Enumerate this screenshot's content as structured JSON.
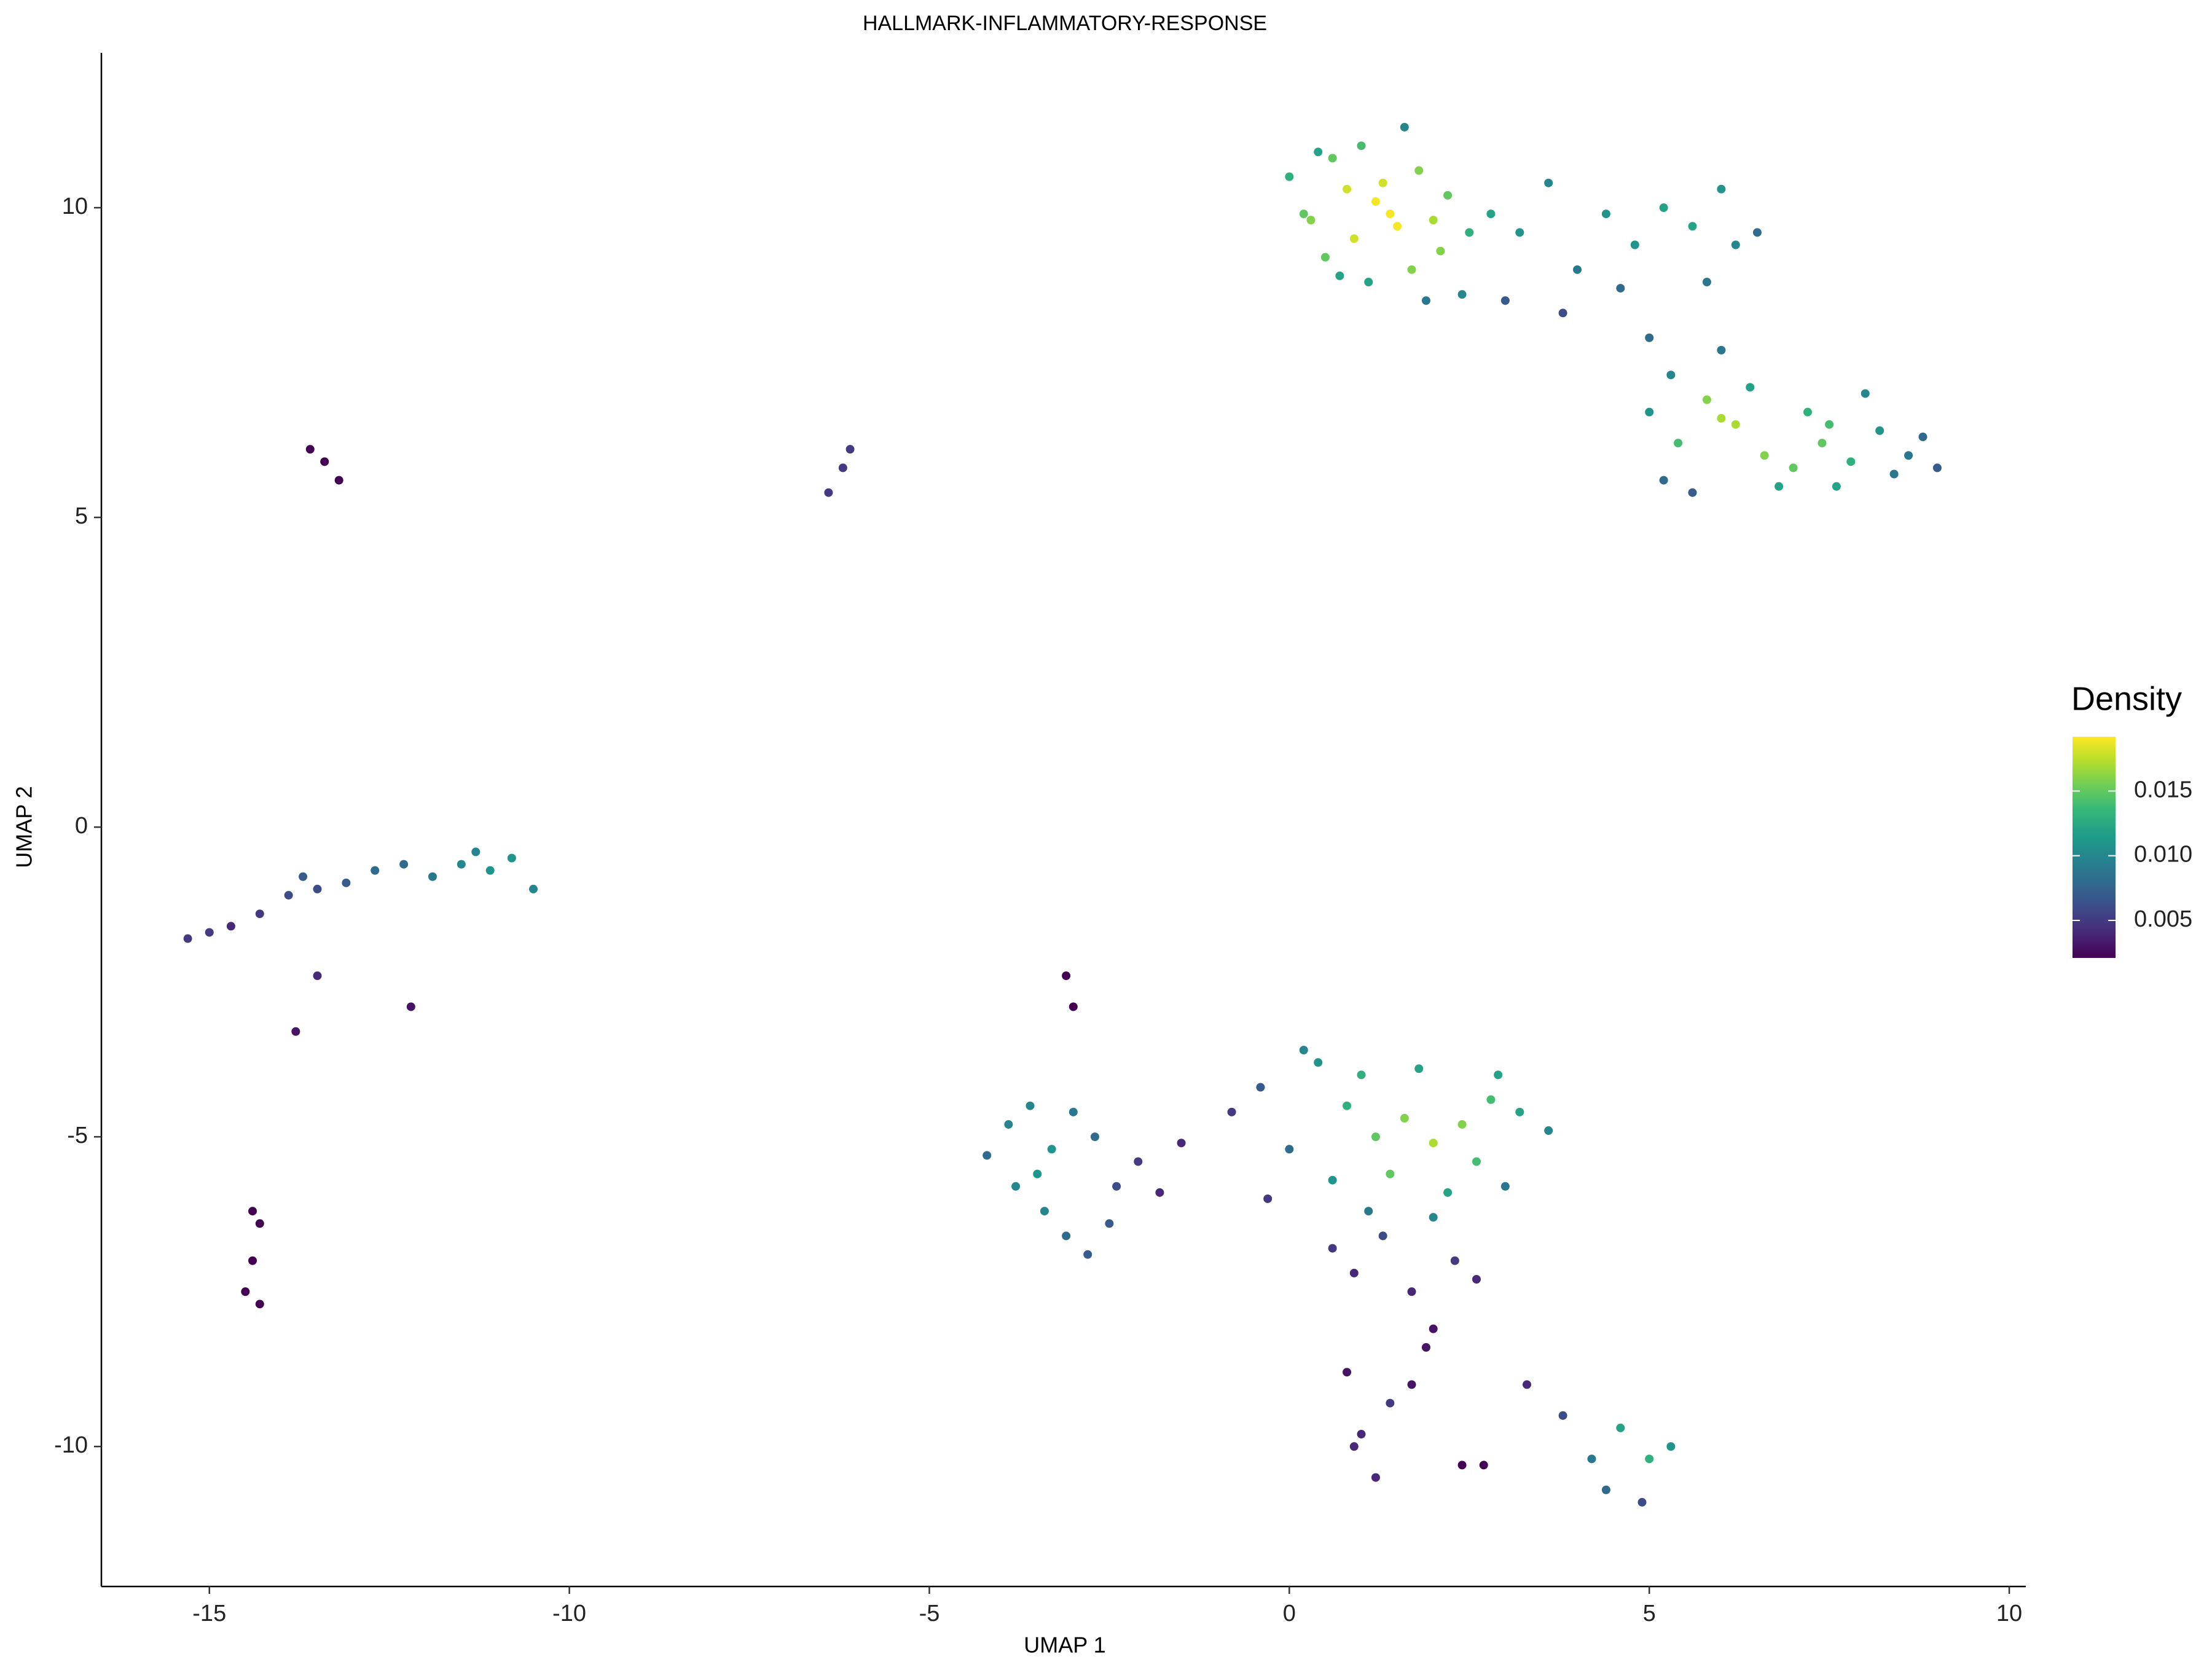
{
  "chart_data": {
    "type": "scatter",
    "title": "HALLMARK-INFLAMMATORY-RESPONSE",
    "x_label": "UMAP 1",
    "y_label": "UMAP 2",
    "xlim": [
      -16.5,
      10.23
    ],
    "ylim": [
      -12.26,
      12.5
    ],
    "xticks": [
      -15,
      -10,
      -5,
      0,
      5,
      10
    ],
    "yticks": [
      -10,
      -5,
      0,
      5,
      10
    ],
    "grid": false,
    "colormap": "viridis",
    "legend": {
      "title": "Density",
      "position": "right",
      "clim": [
        0.0021,
        0.0192
      ],
      "ticks": [
        0.005,
        {
          "value": 0.01,
          "label": "0.010"
        },
        {
          "value": 0.015,
          "label": "0.015"
        }
      ]
    },
    "x": [
      0.0,
      0.3,
      0.6,
      0.9,
      1.2,
      1.5,
      1.8,
      2.1,
      0.2,
      0.5,
      0.8,
      1.1,
      1.4,
      1.7,
      2.0,
      2.4,
      0.4,
      1.0,
      1.3,
      1.6,
      2.2,
      2.5,
      0.7,
      1.9,
      2.8,
      3.2,
      3.6,
      4.0,
      4.4,
      4.8,
      5.2,
      5.6,
      6.0,
      6.2,
      3.0,
      3.8,
      4.6,
      5.0,
      5.8,
      6.5,
      5.0,
      5.4,
      5.8,
      6.2,
      6.6,
      7.0,
      7.4,
      7.8,
      8.2,
      8.6,
      9.0,
      5.2,
      5.6,
      6.0,
      6.4,
      6.8,
      7.2,
      7.6,
      8.0,
      8.4,
      5.3,
      6.0,
      7.5,
      8.8,
      -15.3,
      -15.0,
      -14.7,
      -14.3,
      -13.9,
      -13.5,
      -13.1,
      -12.7,
      -12.3,
      -11.9,
      -11.5,
      -11.1,
      -10.8,
      -10.5,
      -13.7,
      -11.3,
      -13.6,
      -13.4,
      -13.2,
      -6.4,
      -6.2,
      -6.1,
      -14.4,
      -14.3,
      -14.5,
      -14.3,
      -14.4,
      -13.5,
      -13.8,
      -12.2,
      -3.1,
      -3.0,
      -4.2,
      -3.9,
      -3.6,
      -3.3,
      -3.0,
      -2.7,
      -2.4,
      -2.1,
      -3.8,
      -3.4,
      -3.1,
      -2.8,
      -2.5,
      -1.8,
      -1.5,
      -3.5,
      -0.8,
      -0.4,
      0.0,
      0.4,
      0.8,
      1.2,
      1.6,
      2.0,
      2.4,
      2.8,
      3.2,
      3.6,
      0.6,
      1.0,
      1.4,
      1.8,
      2.2,
      2.6,
      3.0,
      0.2,
      1.1,
      2.0,
      2.9,
      -0.3,
      0.6,
      0.9,
      1.3,
      1.7,
      2.0,
      2.3,
      2.6,
      1.9,
      0.8,
      1.0,
      1.2,
      1.4,
      1.7,
      0.9,
      2.4,
      2.7,
      3.3,
      3.8,
      4.2,
      4.6,
      5.0,
      5.3,
      4.4,
      4.9
    ],
    "y": [
      10.5,
      9.8,
      10.8,
      9.5,
      10.1,
      9.7,
      10.6,
      9.3,
      9.9,
      9.2,
      10.3,
      8.8,
      9.9,
      9.0,
      9.8,
      8.6,
      10.9,
      11.0,
      10.4,
      11.3,
      10.2,
      9.6,
      8.9,
      8.5,
      9.9,
      9.6,
      10.4,
      9.0,
      9.9,
      9.4,
      10.0,
      9.7,
      10.3,
      9.4,
      8.5,
      8.3,
      8.7,
      7.9,
      8.8,
      9.6,
      6.7,
      6.2,
      6.9,
      6.5,
      6.0,
      5.8,
      6.2,
      5.9,
      6.4,
      6.0,
      5.8,
      5.6,
      5.4,
      6.6,
      7.1,
      5.5,
      6.7,
      5.5,
      7.0,
      5.7,
      7.3,
      7.7,
      6.5,
      6.3,
      -1.8,
      -1.7,
      -1.6,
      -1.4,
      -1.1,
      -1.0,
      -0.9,
      -0.7,
      -0.6,
      -0.8,
      -0.6,
      -0.7,
      -0.5,
      -1.0,
      -0.8,
      -0.4,
      6.1,
      5.9,
      5.6,
      5.4,
      5.8,
      6.1,
      -6.2,
      -6.4,
      -7.5,
      -7.7,
      -7.0,
      -2.4,
      -3.3,
      -2.9,
      -2.4,
      -2.9,
      -5.3,
      -4.8,
      -4.5,
      -5.2,
      -4.6,
      -5.0,
      -5.8,
      -5.4,
      -5.8,
      -6.2,
      -6.6,
      -6.9,
      -6.4,
      -5.9,
      -5.1,
      -5.6,
      -4.6,
      -4.2,
      -5.2,
      -3.8,
      -4.5,
      -5.0,
      -4.7,
      -5.1,
      -4.8,
      -4.4,
      -4.6,
      -4.9,
      -5.7,
      -4.0,
      -5.6,
      -3.9,
      -5.9,
      -5.4,
      -5.8,
      -3.6,
      -6.2,
      -6.3,
      -4.0,
      -6.0,
      -6.8,
      -7.2,
      -6.6,
      -7.5,
      -8.1,
      -7.0,
      -7.3,
      -8.4,
      -8.8,
      -9.8,
      -10.5,
      -9.3,
      -9.0,
      -10.0,
      -10.3,
      -10.3,
      -9.0,
      -9.5,
      -10.2,
      -9.7,
      -10.2,
      -10.0,
      -10.7,
      -10.9
    ],
    "density": [
      0.013,
      0.016,
      0.015,
      0.018,
      0.019,
      0.019,
      0.016,
      0.016,
      0.015,
      0.015,
      0.018,
      0.012,
      0.019,
      0.016,
      0.017,
      0.01,
      0.012,
      0.014,
      0.018,
      0.01,
      0.015,
      0.013,
      0.012,
      0.009,
      0.012,
      0.011,
      0.01,
      0.009,
      0.011,
      0.011,
      0.012,
      0.012,
      0.011,
      0.01,
      0.007,
      0.006,
      0.008,
      0.008,
      0.009,
      0.008,
      0.011,
      0.014,
      0.016,
      0.017,
      0.016,
      0.015,
      0.015,
      0.013,
      0.011,
      0.009,
      0.007,
      0.008,
      0.007,
      0.017,
      0.012,
      0.012,
      0.013,
      0.012,
      0.01,
      0.009,
      0.01,
      0.009,
      0.014,
      0.008,
      0.005,
      0.005,
      0.004,
      0.005,
      0.006,
      0.006,
      0.007,
      0.008,
      0.008,
      0.009,
      0.01,
      0.011,
      0.011,
      0.01,
      0.007,
      0.01,
      0.002,
      0.002,
      0.002,
      0.005,
      0.005,
      0.005,
      0.002,
      0.002,
      0.002,
      0.002,
      0.002,
      0.004,
      0.003,
      0.003,
      0.002,
      0.002,
      0.008,
      0.01,
      0.01,
      0.011,
      0.009,
      0.008,
      0.006,
      0.005,
      0.01,
      0.01,
      0.008,
      0.007,
      0.007,
      0.004,
      0.004,
      0.011,
      0.005,
      0.007,
      0.008,
      0.011,
      0.013,
      0.015,
      0.016,
      0.017,
      0.016,
      0.014,
      0.012,
      0.01,
      0.011,
      0.013,
      0.015,
      0.012,
      0.012,
      0.014,
      0.009,
      0.01,
      0.009,
      0.01,
      0.012,
      0.005,
      0.005,
      0.004,
      0.006,
      0.004,
      0.003,
      0.005,
      0.004,
      0.003,
      0.003,
      0.004,
      0.004,
      0.005,
      0.003,
      0.004,
      0.002,
      0.002,
      0.004,
      0.006,
      0.009,
      0.012,
      0.013,
      0.011,
      0.008,
      0.006
    ]
  }
}
